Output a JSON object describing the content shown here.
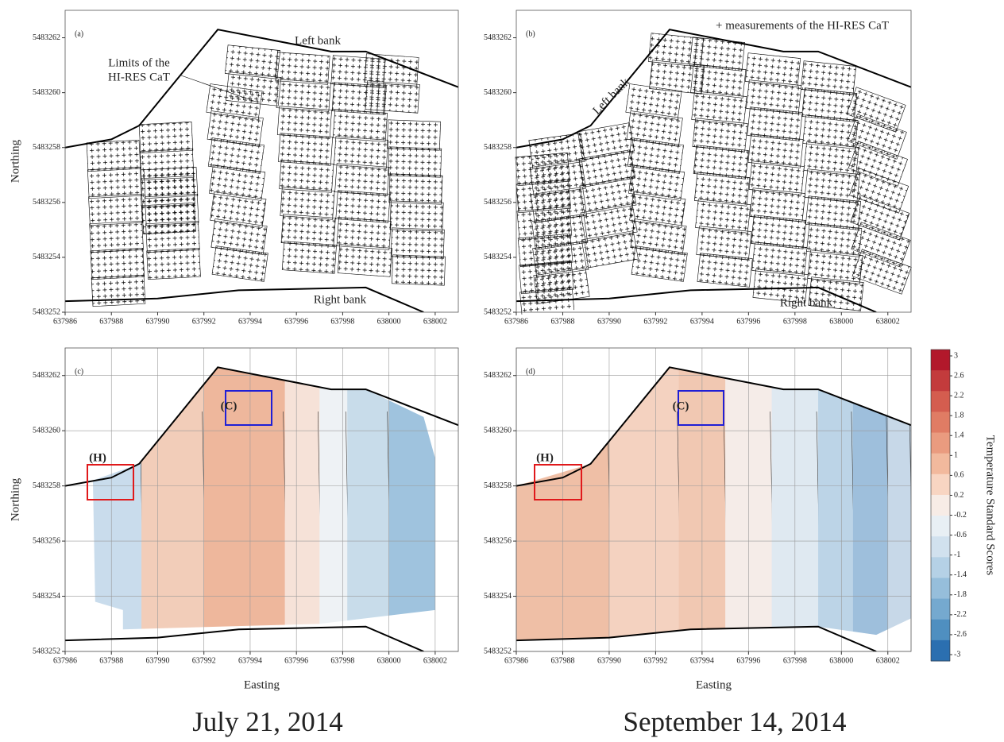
{
  "chart_data": [
    {
      "type": "grid-map",
      "panel_label": "(a)",
      "ylabel": "Northing",
      "xlim": [
        637986,
        638003
      ],
      "ylim": [
        5483252,
        5483263
      ],
      "xticks": [
        637986,
        637988,
        637990,
        637992,
        637994,
        637996,
        637998,
        638000,
        638002
      ],
      "yticks": [
        5483252,
        5483254,
        5483256,
        5483258,
        5483260,
        5483262
      ],
      "grid": false,
      "annotations": [
        {
          "text": "Left bank"
        },
        {
          "text": "Limits of the"
        },
        {
          "text": "HI-RES CaT"
        },
        {
          "text": "Right bank"
        }
      ]
    },
    {
      "type": "grid-map",
      "panel_label": "(b)",
      "xlim": [
        637986,
        638003
      ],
      "ylim": [
        5483252,
        5483263
      ],
      "xticks": [
        637986,
        637988,
        637990,
        637992,
        637994,
        637996,
        637998,
        638000,
        638002
      ],
      "yticks": [
        5483252,
        5483254,
        5483256,
        5483258,
        5483260,
        5483262
      ],
      "grid": false,
      "annotations": [
        {
          "text": "+ measurements of the HI-RES CaT"
        },
        {
          "text": "Left bank"
        },
        {
          "text": "Right bank"
        }
      ]
    },
    {
      "type": "contour",
      "panel_label": "(c)",
      "ylabel": "Northing",
      "xlabel": "Easting",
      "xlim": [
        637986,
        638003
      ],
      "ylim": [
        5483252,
        5483263
      ],
      "xticks": [
        637986,
        637988,
        637990,
        637992,
        637994,
        637996,
        637998,
        638000,
        638002
      ],
      "yticks": [
        5483252,
        5483254,
        5483256,
        5483258,
        5483260,
        5483262
      ],
      "grid": true,
      "annotations": [
        {
          "text": "(H)",
          "color": "#e0191b"
        },
        {
          "text": "(C)",
          "color": "#1f1fd6"
        }
      ]
    },
    {
      "type": "contour",
      "panel_label": "(d)",
      "xlabel": "Easting",
      "xlim": [
        637986,
        638003
      ],
      "ylim": [
        5483252,
        5483263
      ],
      "xticks": [
        637986,
        637988,
        637990,
        637992,
        637994,
        637996,
        637998,
        638000,
        638002
      ],
      "yticks": [
        5483252,
        5483254,
        5483256,
        5483258,
        5483260,
        5483262
      ],
      "grid": true,
      "annotations": [
        {
          "text": "(H)",
          "color": "#e0191b"
        },
        {
          "text": "(C)",
          "color": "#1f1fd6"
        }
      ]
    },
    {
      "type": "colorbar",
      "title": "Temperature Standard Scores",
      "ticks": [
        3,
        2.6,
        2.2,
        1.8,
        1.4,
        1,
        0.6,
        0.2,
        -0.2,
        -0.6,
        -1,
        -1.4,
        -1.8,
        -2.2,
        -2.6,
        -3
      ],
      "colors": [
        "#b2182b",
        "#c33b3c",
        "#d45d4f",
        "#e07c64",
        "#ea9b7f",
        "#f2b99d",
        "#f8d5c2",
        "#f7ece6",
        "#e8eff4",
        "#d1e1ee",
        "#b5d1e6",
        "#96bedb",
        "#75a9cf",
        "#4f8fc0",
        "#2b6fb0"
      ]
    }
  ],
  "captions": [
    "July 21, 2014",
    "September 14, 2014"
  ]
}
